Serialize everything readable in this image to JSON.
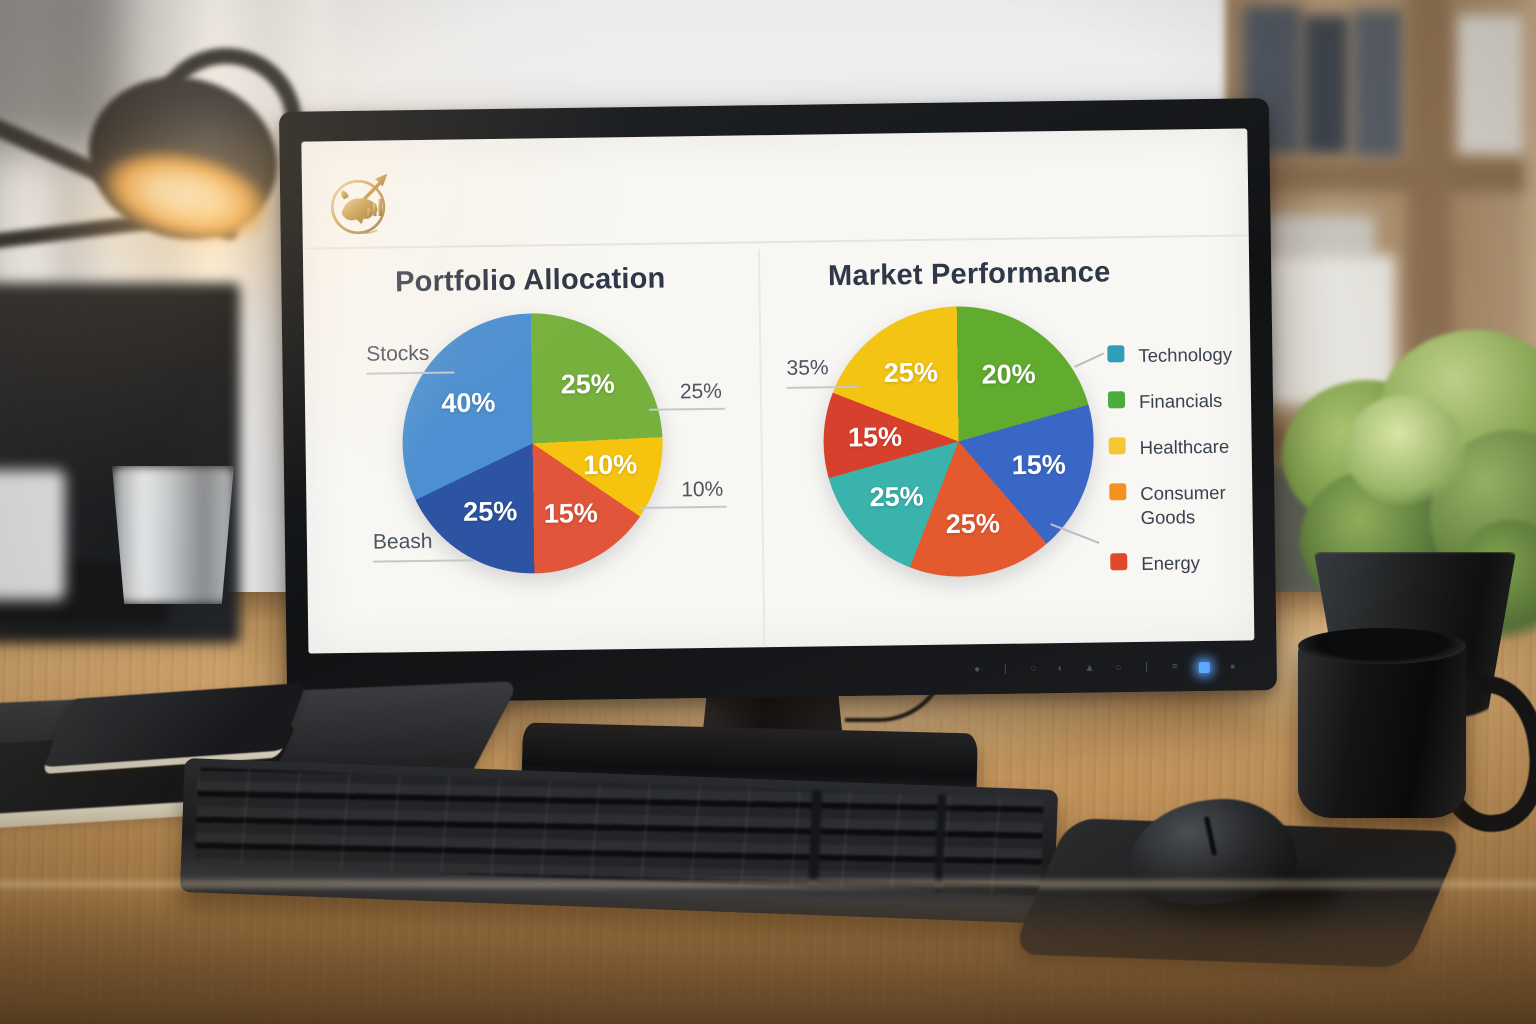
{
  "screen": {
    "logo_icon": "gold-bull-arrow-logo",
    "bezel": {
      "icons": [
        "●",
        "❘",
        "○",
        "◐",
        "▲",
        "○",
        "❘",
        "≡"
      ],
      "power_led_color": "#5aa9ff"
    }
  },
  "chart_data": [
    {
      "type": "pie",
      "title": "Portfolio Allocation",
      "slices": [
        {
          "label": "",
          "pct": "25%",
          "value": 25,
          "color": "#76b13e",
          "sweep_deg": 88
        },
        {
          "label": "",
          "pct": "10%",
          "value": 10,
          "color": "#f6c40f",
          "sweep_deg": 37
        },
        {
          "label": "",
          "pct": "15%",
          "value": 15,
          "color": "#e1553a",
          "sweep_deg": 55
        },
        {
          "label": "Beash",
          "pct": "25%",
          "value": 25,
          "color": "#2c54a3",
          "sweep_deg": 65
        },
        {
          "label": "Stocks",
          "pct": "40%",
          "value": 40,
          "color": "#4d90d2",
          "sweep_deg": 115,
          "label_r": 0.58
        }
      ],
      "callouts": [
        {
          "text": "Stocks"
        },
        {
          "text": "25%"
        },
        {
          "text": "10%"
        },
        {
          "text": "Beash"
        }
      ]
    },
    {
      "type": "pie",
      "title": "Market Performance",
      "slices": [
        {
          "label": "Financials",
          "pct": "20%",
          "value": 20,
          "color": "#61ab2f",
          "sweep_deg": 75
        },
        {
          "label": "",
          "pct": "15%",
          "value": 15,
          "color": "#3a67c6",
          "sweep_deg": 65
        },
        {
          "label": "Consumer Goods",
          "pct": "25%",
          "value": 25,
          "color": "#e4592e",
          "sweep_deg": 62
        },
        {
          "label": "Technology",
          "pct": "25%",
          "value": 25,
          "color": "#3ab3ac",
          "sweep_deg": 53
        },
        {
          "label": "Energy",
          "pct": "15%",
          "value": 15,
          "color": "#d8402e",
          "sweep_deg": 37
        },
        {
          "label": "Healthcare",
          "pct": "25%",
          "value": 25,
          "color": "#f3c414",
          "sweep_deg": 68
        }
      ],
      "callouts": [
        {
          "text": "35%"
        }
      ],
      "legend": [
        {
          "label": "Technology",
          "color": "#2e9fb7"
        },
        {
          "label": "Financials",
          "color": "#49ad3e"
        },
        {
          "label": "Healthcare",
          "color": "#f7c636"
        },
        {
          "label": "Consumer Goods",
          "color": "#f5911e"
        },
        {
          "label": "Energy",
          "color": "#e2492c"
        }
      ],
      "legend_position": "right"
    }
  ]
}
